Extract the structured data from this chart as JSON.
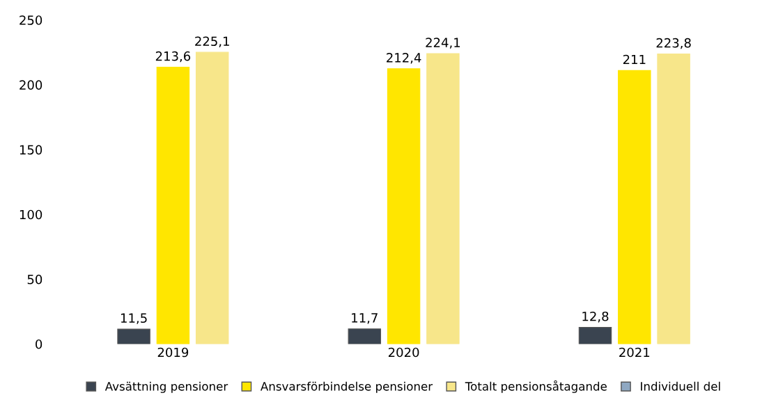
{
  "chart_data": {
    "type": "bar",
    "categories": [
      "2019",
      "2020",
      "2021"
    ],
    "series": [
      {
        "name": "Avsättning pensioner",
        "color": "#3a4450",
        "values": [
          11.5,
          11.7,
          12.8
        ],
        "value_labels": [
          "11,5",
          "11,7",
          "12,8"
        ]
      },
      {
        "name": "Ansvarsförbindelse pensioner",
        "color": "#ffe600",
        "values": [
          213.6,
          212.4,
          211
        ],
        "value_labels": [
          "213,6",
          "212,4",
          "211"
        ]
      },
      {
        "name": "Totalt pensionsåtagande",
        "color": "#f7e68a",
        "values": [
          225.1,
          224.1,
          223.8
        ],
        "value_labels": [
          "225,1",
          "224,1",
          "223,8"
        ]
      },
      {
        "name": "Individuell del",
        "color": "#8fa8c2",
        "values": [
          null,
          null,
          null
        ]
      }
    ],
    "ylim": [
      0,
      250
    ],
    "yticks": [
      0,
      50,
      100,
      150,
      200,
      250
    ],
    "grid": false,
    "legend": "bottom"
  }
}
